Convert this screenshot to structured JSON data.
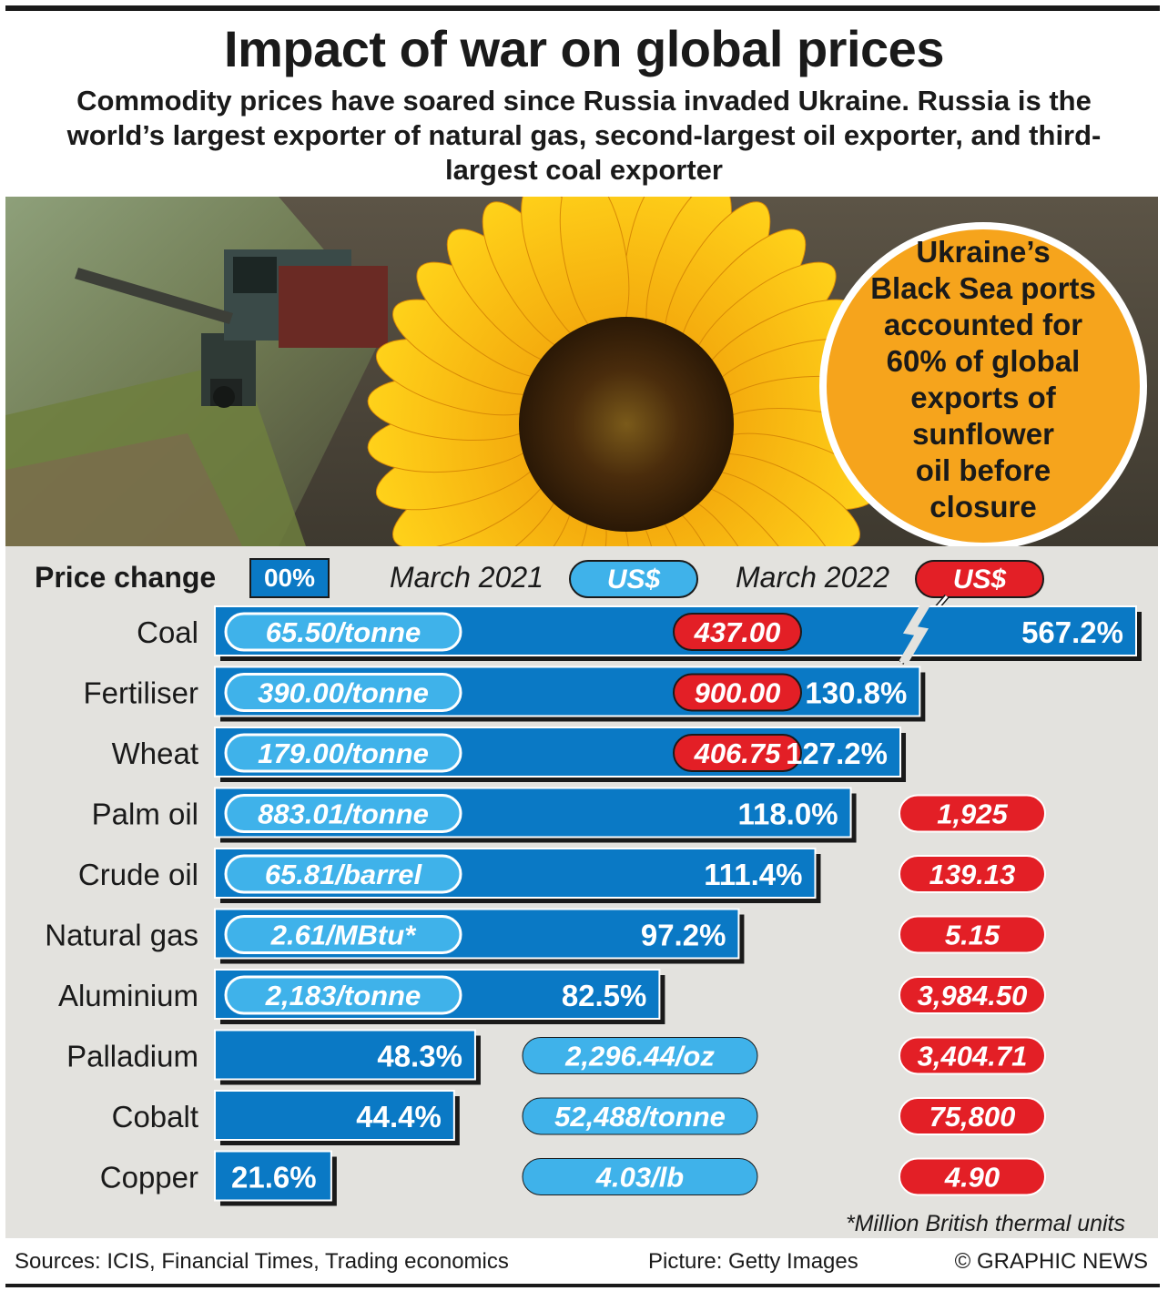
{
  "title": "Impact of war on global prices",
  "subtitle": "Commodity prices have soared since Russia invaded Ukraine. Russia is the world’s largest exporter of natural gas, second-largest oil exporter, and third-largest coal exporter",
  "callout": "Ukraine’s Black Sea ports accounted for 60% of global exports of sunflower oil before closure",
  "legend": {
    "price_change": "Price change",
    "percent_key": "00%",
    "march_2021": "March 2021",
    "march_2022": "March 2022",
    "currency": "US$"
  },
  "footnote": "*Million British thermal units",
  "footer": {
    "sources": "Sources: ICIS, Financial Times, Trading economics",
    "picture": "Picture: Getty Images",
    "credit": "© GRAPHIC NEWS"
  },
  "colors": {
    "bar": "#0a79c5",
    "price_2021": "#3fb2ea",
    "price_2022": "#e31f26",
    "callout": "#f6a41c",
    "panel": "#e3e2de"
  },
  "chart_data": {
    "type": "bar",
    "orientation": "horizontal",
    "axis_break_on": "Coal",
    "categories": [
      "Coal",
      "Fertiliser",
      "Wheat",
      "Palm oil",
      "Crude oil",
      "Natural gas",
      "Aluminium",
      "Palladium",
      "Cobalt",
      "Copper"
    ],
    "series": [
      {
        "name": "Price change",
        "values": [
          567.2,
          130.8,
          127.2,
          118.0,
          111.4,
          97.2,
          82.5,
          48.3,
          44.4,
          21.6
        ]
      }
    ],
    "labels": [
      "567.2%",
      "130.8%",
      "127.2%",
      "118.0%",
      "111.4%",
      "97.2%",
      "82.5%",
      "48.3%",
      "44.4%",
      "21.6%"
    ],
    "march_2021": [
      "65.50/tonne",
      "390.00/tonne",
      "179.00/tonne",
      "883.01/tonne",
      "65.81/barrel",
      "2.61/MBtu*",
      "2,183/tonne",
      "2,296.44/oz",
      "52,488/tonne",
      "4.03/lb"
    ],
    "march_2022": [
      "437.00",
      "900.00",
      "406.75",
      "1,925",
      "139.13",
      "5.15",
      "3,984.50",
      "3,404.71",
      "75,800",
      "4.90"
    ]
  }
}
